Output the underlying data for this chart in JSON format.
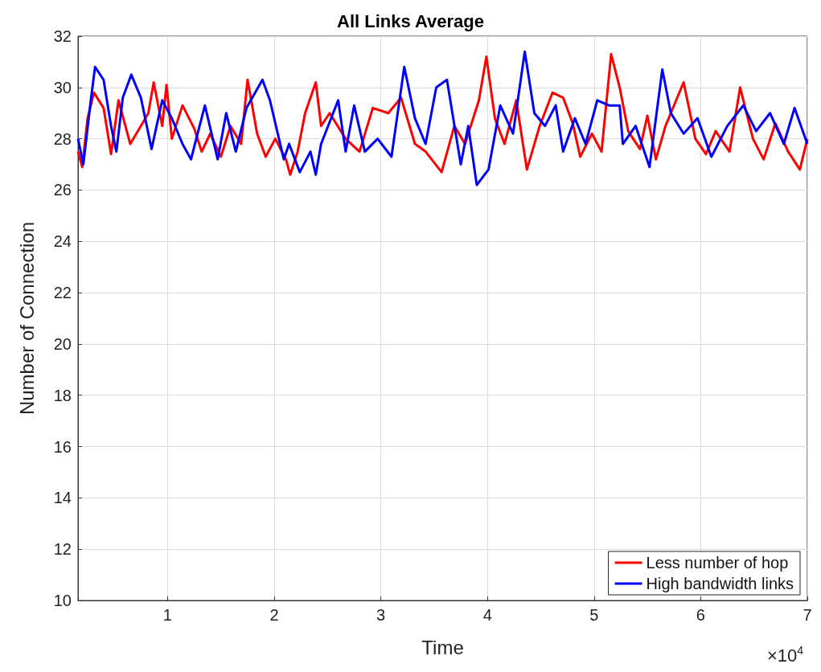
{
  "chart_data": {
    "type": "line",
    "title": "All Links Average",
    "xlabel": "Time",
    "ylabel": "Number of Connection",
    "annotations": [
      "×10$^{4}$"
    ],
    "xlim": [
      0.16,
      7
    ],
    "xticks": [
      1,
      2,
      3,
      4,
      5,
      6,
      7
    ],
    "ylim": [
      10,
      32
    ],
    "yticks": [
      10,
      12,
      14,
      16,
      18,
      20,
      22,
      24,
      26,
      28,
      30,
      32
    ],
    "grid": true,
    "legend": "bottom right",
    "line_style": "solid",
    "marker": "none",
    "series": [
      {
        "name": "Less number of hop",
        "color": "#ff0000",
        "x": [
          0.16,
          0.2,
          0.25,
          0.31,
          0.4,
          0.47,
          0.54,
          0.65,
          0.75,
          0.82,
          0.87,
          0.95,
          0.99,
          1.04,
          1.14,
          1.25,
          1.32,
          1.4,
          1.5,
          1.59,
          1.69,
          1.75,
          1.84,
          1.92,
          2.01,
          2.11,
          2.15,
          2.22,
          2.29,
          2.39,
          2.44,
          2.52,
          2.67,
          2.8,
          2.925,
          3.07,
          3.19,
          3.32,
          3.42,
          3.57,
          3.69,
          3.79,
          3.92,
          3.99,
          4.07,
          4.16,
          4.27,
          4.37,
          4.49,
          4.61,
          4.71,
          4.8,
          4.87,
          4.98,
          5.07,
          5.16,
          5.24,
          5.32,
          5.43,
          5.5,
          5.58,
          5.67,
          5.77,
          5.84,
          5.95,
          6.05,
          6.14,
          6.27,
          6.37,
          6.49,
          6.59,
          6.7,
          6.82,
          6.93,
          7.0
        ],
        "values": [
          27.5,
          26.9,
          28.8,
          29.8,
          29.2,
          27.4,
          29.5,
          27.8,
          28.5,
          29.0,
          30.2,
          28.5,
          30.1,
          28.0,
          29.3,
          28.4,
          27.5,
          28.2,
          27.3,
          28.5,
          27.8,
          30.3,
          28.2,
          27.3,
          28.0,
          27.2,
          26.6,
          27.5,
          29.0,
          30.2,
          28.5,
          29.0,
          28.0,
          27.5,
          29.2,
          29.0,
          29.6,
          27.8,
          27.5,
          26.7,
          28.5,
          27.8,
          29.5,
          31.2,
          28.8,
          27.8,
          29.5,
          26.8,
          28.5,
          29.8,
          29.6,
          28.6,
          27.3,
          28.2,
          27.5,
          31.3,
          30.0,
          28.3,
          27.6,
          28.9,
          27.2,
          28.5,
          29.5,
          30.2,
          28.0,
          27.4,
          28.3,
          27.5,
          30.0,
          28.0,
          27.2,
          28.6,
          27.5,
          26.8,
          28.0
        ]
      },
      {
        "name": "High bandwidth links",
        "color": "#0000ff",
        "x": [
          0.16,
          0.21,
          0.28,
          0.32,
          0.4,
          0.47,
          0.52,
          0.58,
          0.66,
          0.75,
          0.85,
          0.95,
          1.04,
          1.14,
          1.22,
          1.35,
          1.47,
          1.55,
          1.64,
          1.74,
          1.89,
          1.96,
          2.09,
          2.14,
          2.24,
          2.34,
          2.39,
          2.44,
          2.6,
          2.67,
          2.75,
          2.85,
          2.97,
          3.1,
          3.22,
          3.32,
          3.42,
          3.52,
          3.62,
          3.75,
          3.82,
          3.9,
          4.01,
          4.12,
          4.24,
          4.35,
          4.44,
          4.54,
          4.64,
          4.71,
          4.82,
          4.92,
          5.03,
          5.14,
          5.24,
          5.27,
          5.39,
          5.52,
          5.64,
          5.72,
          5.84,
          5.97,
          6.1,
          6.25,
          6.4,
          6.52,
          6.65,
          6.78,
          6.88,
          7.0
        ],
        "values": [
          28.0,
          27.0,
          29.5,
          30.8,
          30.3,
          28.5,
          27.5,
          29.6,
          30.5,
          29.6,
          27.6,
          29.5,
          28.8,
          27.8,
          27.2,
          29.3,
          27.2,
          29.0,
          27.5,
          29.2,
          30.3,
          29.5,
          27.2,
          27.8,
          26.7,
          27.5,
          26.6,
          27.8,
          29.5,
          27.5,
          29.3,
          27.5,
          28.0,
          27.3,
          30.8,
          28.8,
          27.8,
          30.0,
          30.3,
          27.0,
          28.5,
          26.2,
          26.8,
          29.3,
          28.2,
          31.4,
          29.0,
          28.5,
          29.3,
          27.5,
          28.8,
          27.8,
          29.5,
          29.3,
          29.3,
          27.8,
          28.5,
          26.9,
          30.7,
          29.0,
          28.2,
          28.8,
          27.3,
          28.5,
          29.3,
          28.3,
          29.0,
          27.8,
          29.2,
          27.8
        ]
      }
    ]
  }
}
